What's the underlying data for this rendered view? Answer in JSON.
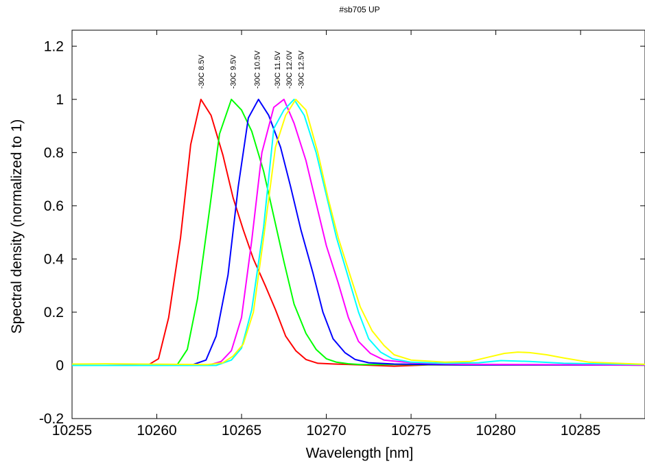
{
  "chart_data": {
    "type": "line",
    "title": "#sb705 UP",
    "xlabel": "Wavelength [nm]",
    "ylabel": "Spectral density (normalized to 1)",
    "xlim": [
      10255,
      10288.8
    ],
    "ylim": [
      -0.2,
      1.26
    ],
    "xticks": [
      10255,
      10260,
      10265,
      10270,
      10275,
      10280,
      10285
    ],
    "yticks": [
      -0.2,
      0,
      0.2,
      0.4,
      0.6,
      0.8,
      1,
      1.2
    ],
    "ytick_labels": [
      "-0.2",
      "0",
      "0.2",
      "0.4",
      "0.6",
      "0.8",
      "1",
      "1.2"
    ],
    "grid": false,
    "legend": "none",
    "series": [
      {
        "name": "-30C 8.5V",
        "color": "#ff0000",
        "x": [
          10255,
          10257,
          10259.5,
          10260.1,
          10260.7,
          10261.4,
          10262,
          10262.6,
          10263.2,
          10263.9,
          10264.5,
          10265.1,
          10265.7,
          10266.4,
          10267,
          10267.6,
          10268.2,
          10268.8,
          10269.5,
          10270.5,
          10272,
          10274,
          10276,
          10280,
          10284,
          10288.8
        ],
        "y": [
          0,
          0,
          0.002,
          0.025,
          0.18,
          0.48,
          0.83,
          1.0,
          0.94,
          0.79,
          0.63,
          0.51,
          0.4,
          0.3,
          0.21,
          0.11,
          0.055,
          0.022,
          0.008,
          0.005,
          0.002,
          -0.003,
          0.002,
          0.002,
          0.002,
          0.001
        ]
      },
      {
        "name": "-30C 9.5V",
        "color": "#00ff00",
        "x": [
          10255,
          10260,
          10261.2,
          10261.8,
          10262.4,
          10263.1,
          10263.7,
          10264.4,
          10265,
          10265.6,
          10266.3,
          10266.9,
          10267.5,
          10268.1,
          10268.8,
          10269.4,
          10270,
          10270.6,
          10271.3,
          10272,
          10274,
          10278,
          10282,
          10288.8
        ],
        "y": [
          0,
          0,
          0.002,
          0.06,
          0.25,
          0.58,
          0.87,
          1.0,
          0.96,
          0.88,
          0.73,
          0.56,
          0.39,
          0.23,
          0.12,
          0.06,
          0.025,
          0.012,
          0.006,
          0.003,
          0.003,
          0.002,
          0.002,
          0.001
        ]
      },
      {
        "name": "-30C 10.5V",
        "color": "#0000ff",
        "x": [
          10255,
          10262,
          10262.9,
          10263.5,
          10264.2,
          10264.8,
          10265.4,
          10266,
          10266.6,
          10267.3,
          10267.9,
          10268.5,
          10269.2,
          10269.8,
          10270.4,
          10271.1,
          10271.7,
          10272.5,
          10274,
          10278,
          10282,
          10288.8
        ],
        "y": [
          0,
          0,
          0.02,
          0.11,
          0.34,
          0.67,
          0.93,
          1.0,
          0.94,
          0.82,
          0.67,
          0.51,
          0.35,
          0.2,
          0.1,
          0.048,
          0.022,
          0.01,
          0.005,
          0.002,
          0.002,
          0.001
        ]
      },
      {
        "name": "-30C 11.5V",
        "color": "#ff00ff",
        "x": [
          10255,
          10263,
          10263.8,
          10264.4,
          10265,
          10265.6,
          10266.2,
          10266.9,
          10267.5,
          10268.1,
          10268.8,
          10269.4,
          10270,
          10270.7,
          10271.3,
          10271.9,
          10272.6,
          10273.4,
          10275,
          10278,
          10282,
          10288.8
        ],
        "y": [
          0,
          0,
          0.015,
          0.055,
          0.18,
          0.47,
          0.8,
          0.97,
          1.0,
          0.91,
          0.77,
          0.61,
          0.45,
          0.31,
          0.18,
          0.09,
          0.045,
          0.02,
          0.01,
          0.004,
          0.003,
          0.001
        ]
      },
      {
        "name": "-30C 12.0V",
        "color": "#00ffff",
        "x": [
          10255,
          10263.5,
          10264.4,
          10265,
          10265.6,
          10266.3,
          10266.9,
          10267.5,
          10268.1,
          10268.7,
          10269.4,
          10270,
          10270.6,
          10271.3,
          10271.9,
          10272.5,
          10273.2,
          10273.9,
          10275,
          10277,
          10279,
          10280.3,
          10282,
          10284,
          10288.8
        ],
        "y": [
          0,
          0,
          0.02,
          0.065,
          0.21,
          0.52,
          0.89,
          0.96,
          1.0,
          0.94,
          0.8,
          0.64,
          0.48,
          0.33,
          0.2,
          0.1,
          0.05,
          0.025,
          0.012,
          0.008,
          0.01,
          0.018,
          0.015,
          0.008,
          0.003
        ]
      },
      {
        "name": "-30C 12.5V",
        "color": "#ffff00",
        "x": [
          10255,
          10257,
          10263,
          10263.9,
          10264.5,
          10265.1,
          10265.7,
          10266.3,
          10267,
          10267.6,
          10268.2,
          10268.8,
          10269.5,
          10270.1,
          10270.7,
          10271.4,
          10272,
          10272.7,
          10273.4,
          10274,
          10275,
          10277,
          10278.5,
          10279.5,
          10280.5,
          10281.3,
          10282,
          10283,
          10284,
          10285.5,
          10288.8
        ],
        "y": [
          0.005,
          0.006,
          0.003,
          0.01,
          0.035,
          0.08,
          0.2,
          0.48,
          0.82,
          0.94,
          1.0,
          0.96,
          0.8,
          0.63,
          0.48,
          0.34,
          0.22,
          0.13,
          0.075,
          0.04,
          0.02,
          0.012,
          0.015,
          0.03,
          0.045,
          0.05,
          0.048,
          0.04,
          0.028,
          0.012,
          0.004
        ]
      }
    ],
    "annotations": [
      {
        "text": "-30C 8.5V",
        "x": 10262.6,
        "y": 1.04
      },
      {
        "text": "-30C 9.5V",
        "x": 10264.5,
        "y": 1.04
      },
      {
        "text": "-30C 10.5V",
        "x": 10265.9,
        "y": 1.04
      },
      {
        "text": "-30C 11.5V",
        "x": 10267.1,
        "y": 1.04
      },
      {
        "text": "-30C 12.0V",
        "x": 10267.8,
        "y": 1.04
      },
      {
        "text": "-30C 12.5V",
        "x": 10268.5,
        "y": 1.04
      }
    ]
  }
}
